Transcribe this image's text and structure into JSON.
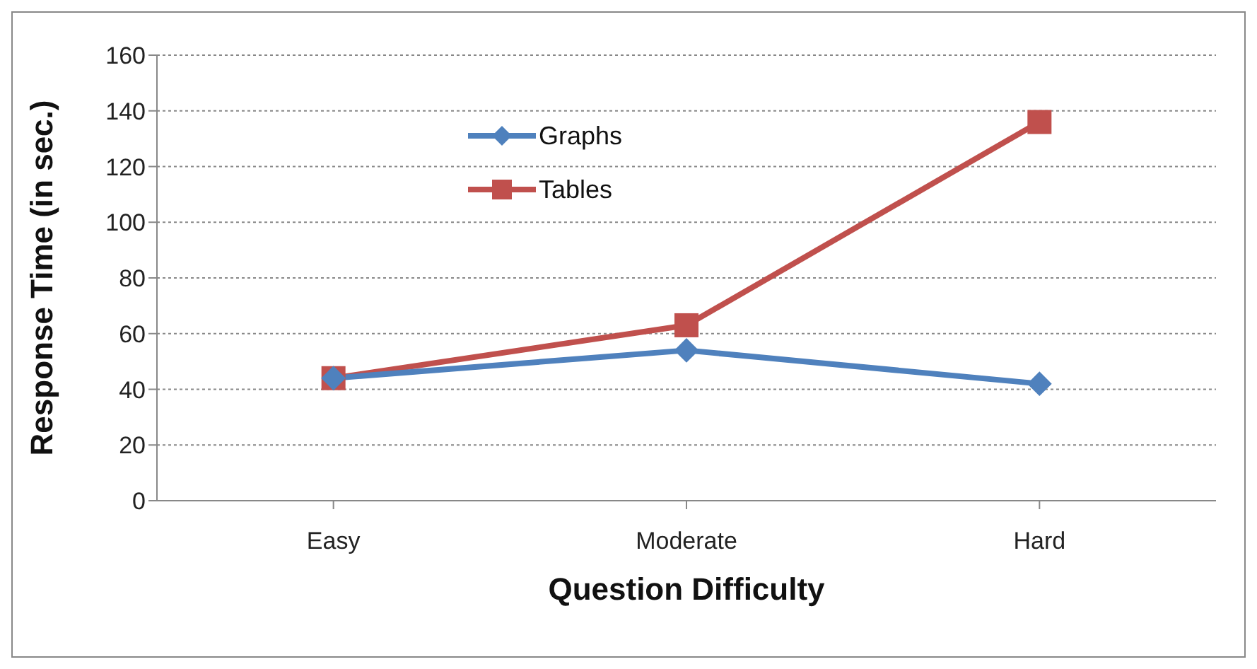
{
  "chart_data": {
    "type": "line",
    "xlabel": "Question Difficulty",
    "ylabel": "Response Time (in sec.)",
    "categories": [
      "Easy",
      "Moderate",
      "Hard"
    ],
    "series": [
      {
        "name": "Graphs",
        "color": "#4f81bd",
        "values": [
          44,
          54,
          42
        ],
        "marker": "diamond"
      },
      {
        "name": "Tables",
        "color": "#c0504d",
        "values": [
          44,
          63,
          136
        ],
        "marker": "square"
      }
    ],
    "ylim": [
      0,
      160
    ],
    "yticks": [
      0,
      20,
      40,
      60,
      80,
      100,
      120,
      140,
      160
    ],
    "grid": "y",
    "legend": "top left",
    "line_style": "solid"
  }
}
